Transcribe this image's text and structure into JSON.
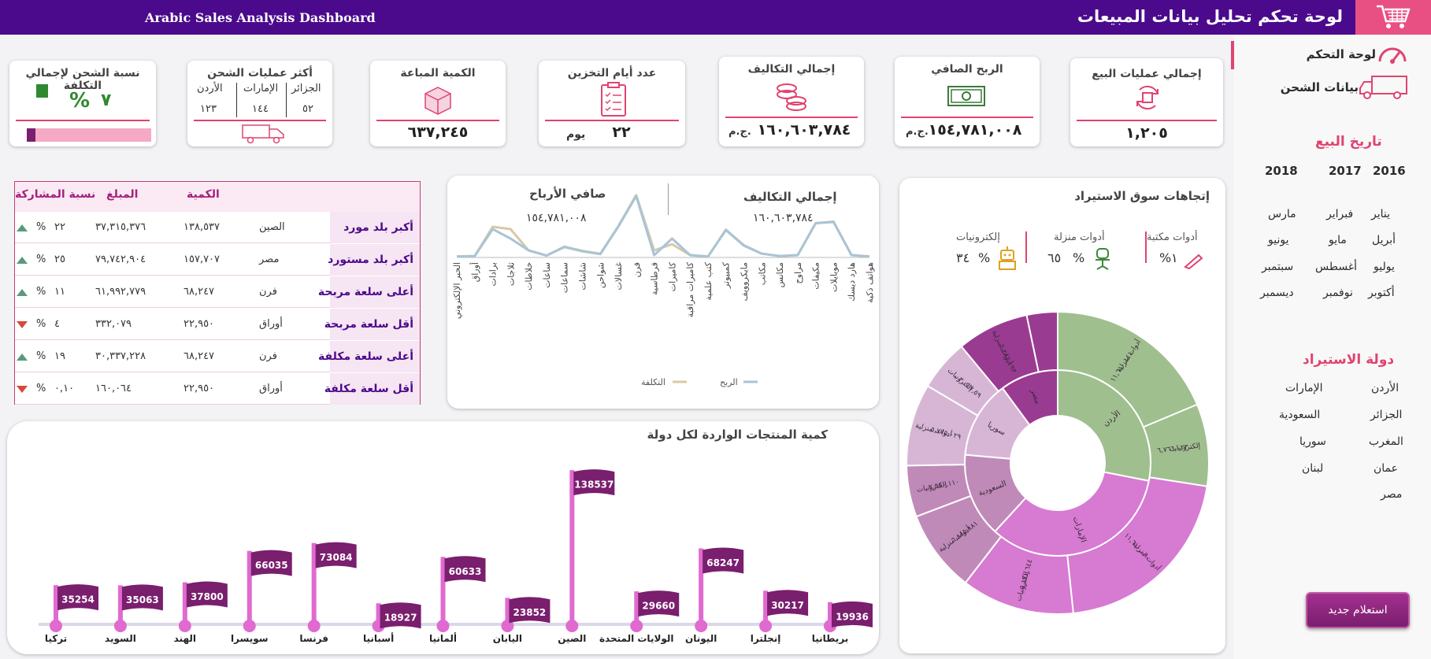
{
  "header": {
    "title_en": "Arabic Sales Analysis  Dashboard",
    "title_ar": "لوحة تحكم تحليل بيانات المبيعات",
    "cart_icon": "cart-icon"
  },
  "sidebar": {
    "nav": [
      {
        "label": "لوحة التحكم",
        "icon": "gauge-icon"
      },
      {
        "label": "بيانات الشحن",
        "icon": "truck-icon"
      }
    ],
    "date_heading": "تاريخ البيع",
    "years": [
      "2016",
      "2017",
      "2018"
    ],
    "months": [
      "يناير",
      "فبراير",
      "مارس",
      "أبريل",
      "مايو",
      "يونيو",
      "يوليو",
      "أغسطس",
      "سبتمبر",
      "أكتوبر",
      "نوفمبر",
      "ديسمبر"
    ],
    "country_heading": "دولة الاستيراد",
    "countries": [
      "الأردن",
      "الإمارات",
      "الجزائر",
      "السعودية",
      "المغرب",
      "سوريا",
      "عمان",
      "لبنان",
      "مصر"
    ],
    "new_query_button": "استعلام جديد"
  },
  "kpis": {
    "sales_ops": {
      "title": "إجمالي عمليات البيع",
      "value": "١,٢٠٥"
    },
    "net_profit": {
      "title": "الربح الصافي",
      "value": "١٥٤,٧٨١,٠٠٨",
      "unit": "ج.م."
    },
    "total_costs": {
      "title": "إجمالي التكاليف",
      "value": "١٦٠,٦٠٣,٧٨٤",
      "unit": "ج.م."
    },
    "storage_days": {
      "title": "عدد أيام التخزين",
      "value": "٢٢",
      "unit": "يوم"
    },
    "qty_sold": {
      "title": "الكمية المباعة",
      "value": "٦٣٧,٢٤٥"
    },
    "top_shipping": {
      "title": "أكثر عمليات الشحن",
      "cols": [
        {
          "country": "الجزائر",
          "value": "٥٢"
        },
        {
          "country": "الإمارات",
          "value": "١٤٤"
        },
        {
          "country": "الأردن",
          "value": "١٢٣"
        }
      ]
    },
    "shipping_ratio": {
      "title": "نسبة الشحن لإجمالي التكلفة",
      "value": "٧",
      "pct": "%",
      "fill_fraction": 0.07
    }
  },
  "table": {
    "headers": {
      "qty": "الكمية",
      "amount": "المبلغ",
      "share": "نسبة المشاركة"
    },
    "rows": [
      {
        "label": "أكبر بلد مورد",
        "item": "الصين",
        "qty": "١٣٨,٥٣٧",
        "amount": "٣٧,٣١٥,٣٧٦",
        "share": "٢٢",
        "trend": "up"
      },
      {
        "label": "أكبر بلد مستورد",
        "item": "مصر",
        "qty": "١٥٧,٧٠٧",
        "amount": "٧٩,٧٤٢,٩٠٤",
        "share": "٢٥",
        "trend": "up"
      },
      {
        "label": "أعلى سلعة مربحة",
        "item": "فرن",
        "qty": "٦٨,٢٤٧",
        "amount": "٦١,٩٩٢,٧٧٩",
        "share": "١١",
        "trend": "up"
      },
      {
        "label": "أقل سلعة مربحة",
        "item": "أوراق",
        "qty": "٢٢,٩٥٠",
        "amount": "٣٣٢,٠٧٩",
        "share": "٤",
        "trend": "down"
      },
      {
        "label": "أعلى سلعة مكلفة",
        "item": "فرن",
        "qty": "٦٨,٢٤٧",
        "amount": "٣٠,٣٣٧,٢٢٨",
        "share": "١٩",
        "trend": "up"
      },
      {
        "label": "أقل سلعة مكلفة",
        "item": "أوراق",
        "qty": "٢٢,٩٥٠",
        "amount": "١٦٠,٠٦٤",
        "share": "٠,١٠",
        "trend": "down"
      }
    ],
    "pct_symbol": "%"
  },
  "line_panel": {
    "cost_title": "إجمالي التكاليف",
    "cost_value": "١٦٠,٦٠٣,٧٨٤",
    "profit_title": "صافي الأرباح",
    "profit_value": "١٥٤,٧٨١,٠٠٨",
    "legend_profit": "الربح",
    "legend_cost": "التكلفة",
    "colors": {
      "profit": "#a9c4d6",
      "cost": "#d8c8a8"
    }
  },
  "sunburst_panel": {
    "title": "إتجاهات سوق الاستيراد",
    "categories": [
      {
        "label": "أدوات مكتبة",
        "value": "١",
        "pct": "%",
        "icon": "pen-icon"
      },
      {
        "label": "أدوات منزلة",
        "value": "٦٥",
        "pct": "%",
        "icon": "chair-icon"
      },
      {
        "label": "إلكترونيات",
        "value": "٣٤",
        "pct": "%",
        "icon": "robot-icon"
      }
    ],
    "inner": [
      {
        "label": "الأردن",
        "value": 25,
        "color": "#9fbf8f"
      },
      {
        "label": "الإمارات",
        "value": 30,
        "color": "#d77ad2"
      },
      {
        "label": "السعودية",
        "value": 13,
        "color": "#c08ab8"
      },
      {
        "label": "سوريا",
        "value": 12,
        "color": "#d7b6d5"
      },
      {
        "label": "مصر",
        "value": 9,
        "color": "#9a3b92"
      }
    ],
    "outer": [
      {
        "label": "أدوات منزلية",
        "value": 17,
        "color": "#9fbf8f",
        "sub": "١١,٦١٠,١٤١"
      },
      {
        "label": "إلكترونيات",
        "value": 8,
        "color": "#9fbf8f",
        "sub": "٦,٧٦٦,٠٢٣"
      },
      {
        "label": "أدوات منزلية",
        "value": 19,
        "color": "#d77ad2",
        "sub": "١١,٦١٠,٠٩٠"
      },
      {
        "label": "إلكترونيات",
        "value": 11,
        "color": "#d77ad2",
        "sub": "٥,١٢١,٦٤٤"
      },
      {
        "label": "أدوات منزلية",
        "value": 8,
        "color": "#c08ab8",
        "sub": "٦,٨٨٥,٨٨١"
      },
      {
        "label": "إلكترونيات",
        "value": 5,
        "color": "#c08ab8",
        "sub": "٢,٩٥٠,١١٠"
      },
      {
        "label": "أدوات منزلية",
        "value": 8,
        "color": "#d7b6d5",
        "sub": "٥,٧٧٥,٠٢٩"
      },
      {
        "label": "إلكترونيات",
        "value": 5,
        "color": "#d7b6d5",
        "sub": "٣,٠٤٧,٥٩"
      },
      {
        "label": "أدوات منزلية",
        "value": 7,
        "color": "#9a3b92",
        "sub": "٦,٢٨٦,١٩٣"
      },
      {
        "label": "إلكترونيات",
        "value": 3,
        "color": "#9a3b92",
        "sub": "٢,٨٧٥,٠٩"
      }
    ]
  },
  "flags_panel": {
    "title": "كمية المنتجات الواردة لكل دولة"
  },
  "chart_data": [
    {
      "type": "line",
      "title": "",
      "x": [
        "الحبر الإلكتروني",
        "أوراق",
        "برادات",
        "ثلاجات",
        "خلاطات",
        "ساعات",
        "سماعات",
        "شاشات",
        "شواحن",
        "غسالات",
        "فرن",
        "قرطاسية",
        "كاميرات",
        "كاميرات مراقبة",
        "كتب علمية",
        "كمبيوتر",
        "مايكروويف",
        "مكاتب",
        "مكانس",
        "مراوح",
        "مكيفات",
        "موبايلات",
        "هارد ديسك",
        "هواتف ذكية"
      ],
      "series": [
        {
          "name": "الربح",
          "values": [
            0.2,
            0.3,
            6.0,
            4.0,
            1.5,
            0.4,
            2.2,
            1.3,
            0.7,
            6.5,
            13.0,
            0.5,
            4.0,
            0.5,
            0.2,
            5.8,
            2.5,
            0.8,
            0.3,
            0.5,
            7.3,
            7.5,
            0.5,
            0.2
          ]
        },
        {
          "name": "التكلفة",
          "values": [
            0.2,
            0.3,
            6.5,
            6.0,
            1.5,
            0.4,
            2.3,
            1.4,
            0.8,
            6.6,
            13.2,
            1.5,
            2.8,
            0.5,
            0.2,
            5.9,
            2.6,
            0.8,
            0.3,
            0.5,
            7.2,
            7.6,
            0.5,
            0.2
          ]
        }
      ],
      "ylim": [
        0,
        14
      ]
    },
    {
      "type": "bar",
      "title": "كمية المنتجات الواردة لكل دولة",
      "categories": [
        "تركيا",
        "السويد",
        "الهند",
        "سويسرا",
        "فرنسا",
        "أسبانيا",
        "ألمانيا",
        "اليابان",
        "الصين",
        "الولايات المتحدة",
        "اليونان",
        "إنجلترا",
        "بريطانيا"
      ],
      "values": [
        35254,
        35063,
        37800,
        66035,
        73084,
        18927,
        60633,
        23852,
        138537,
        29660,
        68247,
        30217,
        19936
      ],
      "ylim": [
        0,
        145000
      ]
    }
  ]
}
